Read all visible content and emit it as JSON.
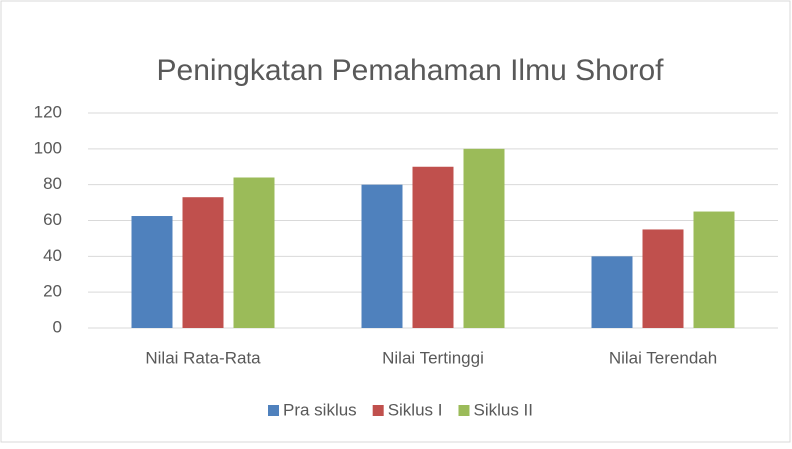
{
  "chart_data": {
    "type": "bar",
    "title": "Peningkatan Pemahaman Ilmu Shorof",
    "categories": [
      "Nilai Rata-Rata",
      "Nilai Tertinggi",
      "Nilai Terendah"
    ],
    "series": [
      {
        "name": "Pra siklus",
        "color": "#4f81bd",
        "values": [
          62.5,
          80,
          40
        ]
      },
      {
        "name": "Siklus I",
        "color": "#c0504d",
        "values": [
          73,
          90,
          55
        ]
      },
      {
        "name": "Siklus II",
        "color": "#9bbb59",
        "values": [
          84,
          100,
          65
        ]
      }
    ],
    "ylim": [
      0,
      120
    ],
    "yticks": [
      0,
      20,
      40,
      60,
      80,
      100,
      120
    ],
    "grid": true,
    "legend": "bottom"
  }
}
